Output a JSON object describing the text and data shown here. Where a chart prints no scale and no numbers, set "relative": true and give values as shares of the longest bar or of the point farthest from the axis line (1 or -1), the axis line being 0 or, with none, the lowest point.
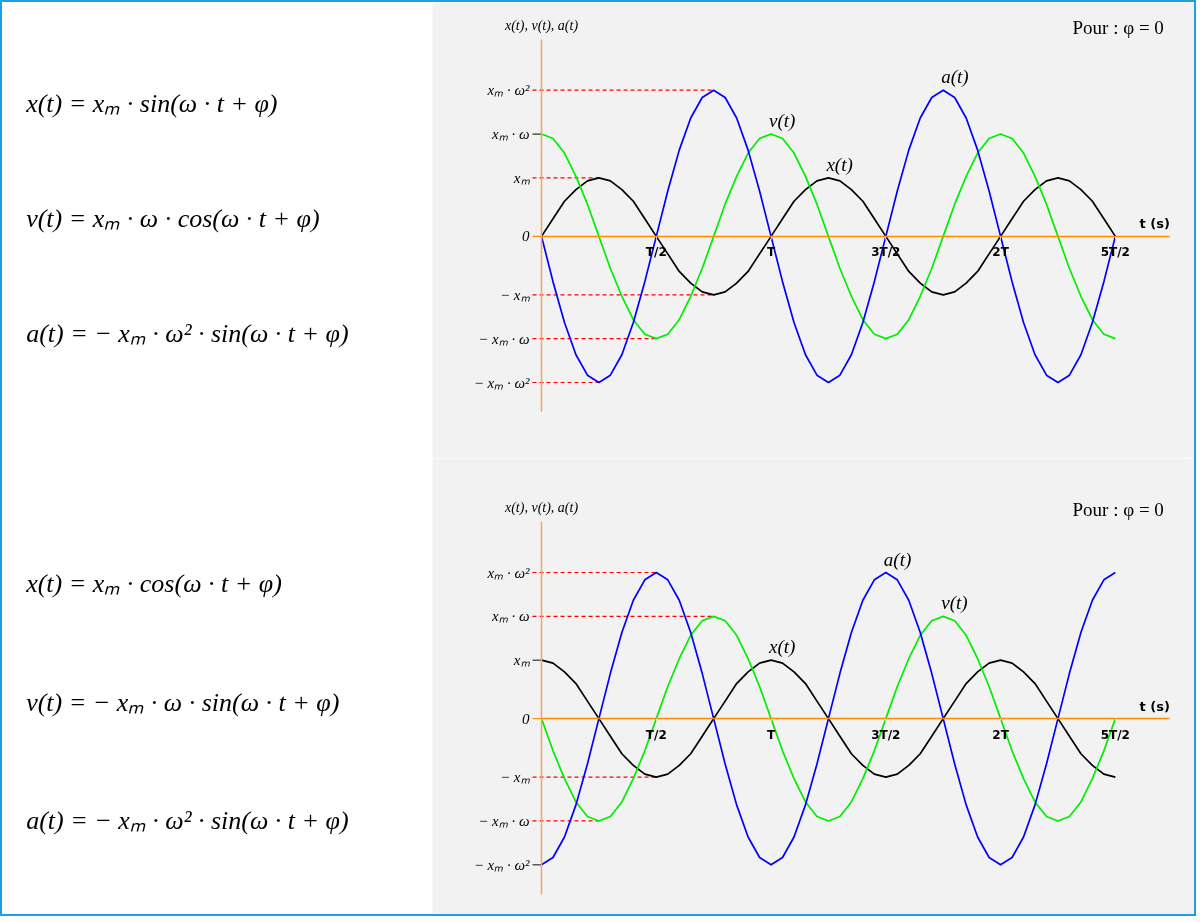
{
  "chart_data": [
    {
      "type": "other",
      "annotations": [
        "x(t) = xₘ · sin(ω · t + φ)",
        "v(t) = xₘ · ω · cos(ω · t + φ)",
        "a(t) = − xₘ · ω² · sin(ω · t + φ)"
      ]
    },
    {
      "type": "line",
      "relative": true,
      "xlabel": "t (s)",
      "ylabel": "x(t), v(t), a(t)",
      "annotations": [
        "Pour : φ = 0"
      ],
      "categories": [
        null,
        null,
        null,
        null,
        null,
        null,
        null,
        null,
        null,
        null,
        "T/2",
        null,
        null,
        null,
        null,
        null,
        null,
        null,
        null,
        null,
        "T",
        null,
        null,
        null,
        null,
        null,
        null,
        null,
        null,
        null,
        "3T/2",
        null,
        null,
        null,
        null,
        null,
        null,
        null,
        null,
        null,
        "2T",
        null,
        null,
        null,
        null,
        null,
        null,
        null,
        null,
        null,
        "5T/2"
      ],
      "ref_lines": [
        {
          "axis": "y",
          "value": 1,
          "label": "xₘ · ω²",
          "color": "#ff0000",
          "line_style": "dashed"
        },
        {
          "axis": "y",
          "value": 0.7,
          "label": "xₘ · ω",
          "color": "#333333"
        },
        {
          "axis": "y",
          "value": 0.4,
          "label": "xₘ",
          "color": "#ff0000",
          "line_style": "dashed"
        },
        {
          "axis": "y",
          "value": 0,
          "label": "0",
          "color": "#ff8c00"
        },
        {
          "axis": "y",
          "value": -0.4,
          "label": "− xₘ",
          "color": "#ff0000",
          "line_style": "dashed"
        },
        {
          "axis": "y",
          "value": -0.7,
          "label": "− xₘ · ω",
          "color": "#ff0000",
          "line_style": "dashed"
        },
        {
          "axis": "y",
          "value": -1,
          "label": "− xₘ · ω²",
          "color": "#ff0000",
          "line_style": "dashed"
        }
      ],
      "series": [
        {
          "name": "x(t)",
          "color": "#000000",
          "values": [
            0,
            0.12,
            0.24,
            0.32,
            0.38,
            0.4,
            0.38,
            0.32,
            0.24,
            0.12,
            0,
            -0.12,
            -0.24,
            -0.32,
            -0.38,
            -0.4,
            -0.38,
            -0.32,
            -0.24,
            -0.12,
            0,
            0.12,
            0.24,
            0.32,
            0.38,
            0.4,
            0.38,
            0.32,
            0.24,
            0.12,
            0,
            -0.12,
            -0.24,
            -0.32,
            -0.38,
            -0.4,
            -0.38,
            -0.32,
            -0.24,
            -0.12,
            0,
            0.12,
            0.24,
            0.32,
            0.38,
            0.4,
            0.38,
            0.32,
            0.24,
            0.12,
            0
          ]
        },
        {
          "name": "v(t)",
          "color": "#00ee00",
          "values": [
            0.7,
            0.67,
            0.57,
            0.41,
            0.22,
            0,
            -0.22,
            -0.41,
            -0.57,
            -0.67,
            -0.7,
            -0.67,
            -0.57,
            -0.41,
            -0.22,
            0,
            0.22,
            0.41,
            0.57,
            0.67,
            0.7,
            0.67,
            0.57,
            0.41,
            0.22,
            0,
            -0.22,
            -0.41,
            -0.57,
            -0.67,
            -0.7,
            -0.67,
            -0.57,
            -0.41,
            -0.22,
            0,
            0.22,
            0.41,
            0.57,
            0.67,
            0.7,
            0.67,
            0.57,
            0.41,
            0.22,
            0,
            -0.22,
            -0.41,
            -0.57,
            -0.67,
            -0.7
          ]
        },
        {
          "name": "a(t)",
          "color": "#0000ff",
          "values": [
            0,
            -0.31,
            -0.59,
            -0.81,
            -0.95,
            -1,
            -0.95,
            -0.81,
            -0.59,
            -0.31,
            0,
            0.31,
            0.59,
            0.81,
            0.95,
            1,
            0.95,
            0.81,
            0.59,
            0.31,
            0,
            -0.31,
            -0.59,
            -0.81,
            -0.95,
            -1,
            -0.95,
            -0.81,
            -0.59,
            -0.31,
            0,
            0.31,
            0.59,
            0.81,
            0.95,
            1,
            0.95,
            0.81,
            0.59,
            0.31,
            0,
            -0.31,
            -0.59,
            -0.81,
            -0.95,
            -1,
            -0.95,
            -0.81,
            -0.59,
            -0.31,
            0
          ]
        }
      ]
    },
    {
      "type": "other",
      "annotations": [
        "x(t) = xₘ · cos(ω · t + φ)",
        "v(t) = − xₘ · ω · sin(ω · t + φ)",
        "a(t) = − xₘ · ω² · sin(ω · t + φ)"
      ]
    },
    {
      "type": "line",
      "relative": true,
      "xlabel": "t (s)",
      "ylabel": "x(t), v(t), a(t)",
      "annotations": [
        "Pour : φ = 0"
      ],
      "categories": [
        null,
        null,
        null,
        null,
        null,
        null,
        null,
        null,
        null,
        null,
        "T/2",
        null,
        null,
        null,
        null,
        null,
        null,
        null,
        null,
        null,
        "T",
        null,
        null,
        null,
        null,
        null,
        null,
        null,
        null,
        null,
        "3T/2",
        null,
        null,
        null,
        null,
        null,
        null,
        null,
        null,
        null,
        "2T",
        null,
        null,
        null,
        null,
        null,
        null,
        null,
        null,
        null,
        "5T/2"
      ],
      "ref_lines": [
        {
          "axis": "y",
          "value": 1,
          "label": "xₘ · ω²",
          "color": "#ff0000",
          "line_style": "dashed"
        },
        {
          "axis": "y",
          "value": 0.7,
          "label": "xₘ · ω",
          "color": "#ff0000",
          "line_style": "dashed"
        },
        {
          "axis": "y",
          "value": 0.4,
          "label": "xₘ",
          "color": "#333333"
        },
        {
          "axis": "y",
          "value": 0,
          "label": "0",
          "color": "#ff8c00"
        },
        {
          "axis": "y",
          "value": -0.4,
          "label": "− xₘ",
          "color": "#ff0000",
          "line_style": "dashed"
        },
        {
          "axis": "y",
          "value": -0.7,
          "label": "− xₘ · ω",
          "color": "#ff0000",
          "line_style": "dashed"
        },
        {
          "axis": "y",
          "value": -1,
          "label": "− xₘ · ω²",
          "color": "#333333"
        }
      ],
      "series": [
        {
          "name": "x(t)",
          "color": "#000000",
          "values": [
            0.4,
            0.38,
            0.32,
            0.24,
            0.12,
            0,
            -0.12,
            -0.24,
            -0.32,
            -0.38,
            -0.4,
            -0.38,
            -0.32,
            -0.24,
            -0.12,
            0,
            0.12,
            0.24,
            0.32,
            0.38,
            0.4,
            0.38,
            0.32,
            0.24,
            0.12,
            0,
            -0.12,
            -0.24,
            -0.32,
            -0.38,
            -0.4,
            -0.38,
            -0.32,
            -0.24,
            -0.12,
            0,
            0.12,
            0.24,
            0.32,
            0.38,
            0.4,
            0.38,
            0.32,
            0.24,
            0.12,
            0,
            -0.12,
            -0.24,
            -0.32,
            -0.38,
            -0.4
          ]
        },
        {
          "name": "v(t)",
          "color": "#00ee00",
          "values": [
            0,
            -0.22,
            -0.41,
            -0.57,
            -0.67,
            -0.7,
            -0.67,
            -0.57,
            -0.41,
            -0.22,
            0,
            0.22,
            0.41,
            0.57,
            0.67,
            0.7,
            0.67,
            0.57,
            0.41,
            0.22,
            0,
            -0.22,
            -0.41,
            -0.57,
            -0.67,
            -0.7,
            -0.67,
            -0.57,
            -0.41,
            -0.22,
            0,
            0.22,
            0.41,
            0.57,
            0.67,
            0.7,
            0.67,
            0.57,
            0.41,
            0.22,
            0,
            -0.22,
            -0.41,
            -0.57,
            -0.67,
            -0.7,
            -0.67,
            -0.57,
            -0.41,
            -0.22,
            0
          ]
        },
        {
          "name": "a(t)",
          "color": "#0000ff",
          "values": [
            -1,
            -0.95,
            -0.81,
            -0.59,
            -0.31,
            0,
            0.31,
            0.59,
            0.81,
            0.95,
            1,
            0.95,
            0.81,
            0.59,
            0.31,
            0,
            -0.31,
            -0.59,
            -0.81,
            -0.95,
            -1,
            -0.95,
            -0.81,
            -0.59,
            -0.31,
            0,
            0.31,
            0.59,
            0.81,
            0.95,
            1,
            0.95,
            0.81,
            0.59,
            0.31,
            0,
            -0.31,
            -0.59,
            -0.81,
            -0.95,
            -1,
            -0.95,
            -0.81,
            -0.59,
            -0.31,
            0,
            0.31,
            0.59,
            0.81,
            0.95,
            1
          ]
        }
      ]
    }
  ]
}
